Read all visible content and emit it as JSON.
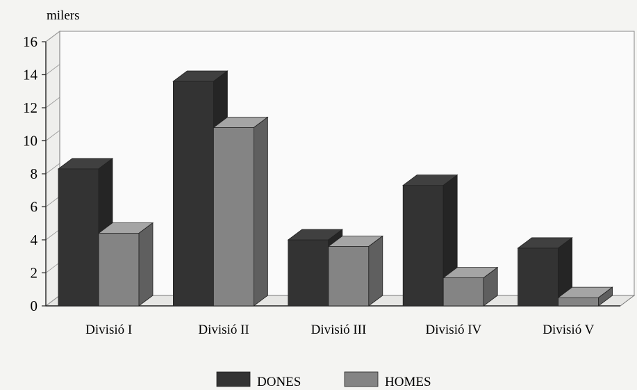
{
  "chart_data": {
    "type": "bar",
    "title": "",
    "xlabel": "",
    "ylabel": "milers",
    "ylim": [
      0,
      16
    ],
    "yticks": [
      0,
      2,
      4,
      6,
      8,
      10,
      12,
      14,
      16
    ],
    "grid": false,
    "legend_position": "bottom",
    "categories": [
      "Divisió I",
      "Divisió II",
      "Divisió III",
      "Divisió IV",
      "Divisió V"
    ],
    "series": [
      {
        "name": "DONES",
        "values": [
          8.3,
          13.6,
          4.0,
          7.3,
          3.5
        ],
        "color": "#333333"
      },
      {
        "name": "HOMES",
        "values": [
          4.4,
          10.8,
          3.6,
          1.7,
          0.5
        ],
        "color": "#848484"
      }
    ]
  }
}
